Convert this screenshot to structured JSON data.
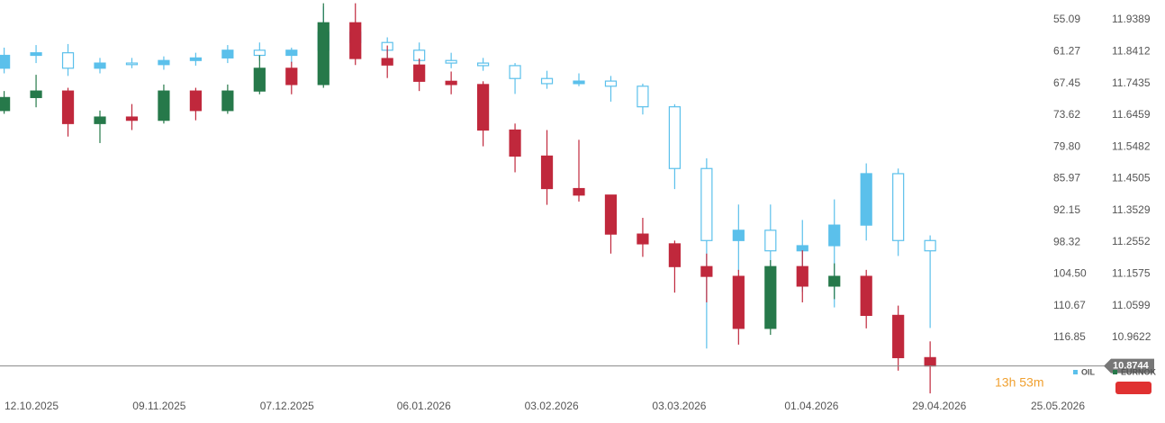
{
  "chart_data": {
    "type": "candlestick",
    "x": [
      "06.10.2025",
      "13.10.2025",
      "20.10.2025",
      "27.10.2025",
      "03.11.2025",
      "10.11.2025",
      "17.11.2025",
      "24.11.2025",
      "01.12.2025",
      "08.12.2025",
      "15.12.2025",
      "22.12.2025",
      "29.12.2025",
      "05.01.2026",
      "12.01.2026",
      "19.01.2026",
      "26.01.2026",
      "02.02.2026",
      "09.02.2026",
      "16.02.2026",
      "23.02.2026",
      "02.03.2026",
      "09.03.2026",
      "16.03.2026",
      "23.03.2026",
      "30.03.2026",
      "06.04.2026",
      "13.04.2026",
      "20.04.2026",
      "27.04.2026"
    ],
    "xticks": [
      "12.10.2025",
      "09.11.2025",
      "07.12.2025",
      "06.01.2026",
      "03.02.2026",
      "03.03.2026",
      "01.04.2026",
      "29.04.2026",
      "25.05.2026"
    ],
    "ylim": [
      128.22,
      51.24
    ],
    "yticks": [
      55.09,
      61.27,
      67.45,
      73.62,
      {
        "value": 79.8,
        "label": "79.80"
      },
      85.97,
      92.15,
      98.32,
      {
        "value": 104.5,
        "label": "104.50"
      },
      110.67,
      116.85
    ],
    "y2lim": [
      10.782,
      12.0
    ],
    "y2ticks": [
      11.9389,
      11.8412,
      11.7435,
      11.6459,
      11.5482,
      11.4505,
      11.3529,
      11.2552,
      11.1575,
      11.0599,
      10.9622
    ],
    "countdown": "13h 53m",
    "series": [
      {
        "name": "OIL",
        "color": "#5bc0eb",
        "open": [
          64.5,
          62.0,
          61.5,
          64.5,
          63.5,
          63.8,
          63.0,
          62.5,
          61.0,
          62.0,
          61.0,
          57.5,
          59.5,
          61.0,
          63.0,
          63.5,
          64.0,
          66.5,
          67.5,
          67.0,
          68.0,
          72.0,
          84.0,
          98.0,
          96.0,
          100.0,
          99.0,
          95.0,
          85.0,
          98.0
        ],
        "high": [
          65.5,
          63.5,
          66.0,
          65.5,
          64.5,
          64.8,
          64.0,
          63.5,
          63.0,
          63.5,
          62.0,
          60.0,
          62.5,
          64.0,
          64.5,
          65.0,
          69.5,
          68.5,
          68.0,
          71.0,
          73.5,
          88.0,
          119.0,
          104.0,
          110.0,
          108.0,
          111.0,
          98.0,
          101.0,
          115.0
        ],
        "low": [
          60.5,
          60.0,
          59.8,
          62.5,
          62.5,
          62.2,
          61.5,
          60.0,
          59.5,
          60.5,
          52.5,
          55.5,
          58.5,
          59.5,
          61.5,
          62.5,
          63.5,
          65.0,
          65.5,
          66.0,
          67.5,
          71.5,
          82.0,
          91.0,
          91.0,
          94.0,
          90.0,
          83.0,
          84.0,
          97.0
        ],
        "close": [
          62.0,
          61.5,
          64.5,
          63.5,
          63.8,
          63.0,
          62.5,
          61.0,
          62.0,
          61.0,
          57.5,
          59.5,
          61.0,
          63.0,
          63.5,
          64.0,
          66.5,
          67.5,
          67.0,
          68.0,
          72.0,
          84.0,
          98.0,
          96.0,
          100.0,
          99.0,
          95.0,
          85.0,
          98.0,
          100.0
        ]
      },
      {
        "name": "EURNOK",
        "axis": "y2",
        "up_color": "#26794a",
        "down_color": "#c0283c",
        "open": [
          11.66,
          11.7,
          11.72,
          11.62,
          11.64,
          11.63,
          11.72,
          11.66,
          11.72,
          11.79,
          11.74,
          11.93,
          11.82,
          11.8,
          11.75,
          11.74,
          11.6,
          11.52,
          11.42,
          11.4,
          11.28,
          11.25,
          11.18,
          11.15,
          10.99,
          11.18,
          11.12,
          11.15,
          11.03,
          10.9
        ],
        "high": [
          11.72,
          11.77,
          11.73,
          11.66,
          11.68,
          11.74,
          11.73,
          11.74,
          11.83,
          11.81,
          11.99,
          11.99,
          11.86,
          11.82,
          11.78,
          11.75,
          11.62,
          11.6,
          11.57,
          11.4,
          11.33,
          11.26,
          11.22,
          11.17,
          11.2,
          11.23,
          11.19,
          11.17,
          11.06,
          10.95
        ],
        "low": [
          11.65,
          11.67,
          11.58,
          11.56,
          11.6,
          11.62,
          11.63,
          11.65,
          11.71,
          11.71,
          11.73,
          11.8,
          11.76,
          11.72,
          11.71,
          11.55,
          11.47,
          11.37,
          11.38,
          11.22,
          11.21,
          11.1,
          11.07,
          10.94,
          10.97,
          11.07,
          11.08,
          10.99,
          10.86,
          10.79
        ],
        "close": [
          11.7,
          11.72,
          11.62,
          11.64,
          11.63,
          11.72,
          11.66,
          11.72,
          11.79,
          11.74,
          11.93,
          11.82,
          11.8,
          11.75,
          11.74,
          11.6,
          11.52,
          11.42,
          11.4,
          11.28,
          11.25,
          11.18,
          11.15,
          10.99,
          11.18,
          11.12,
          11.15,
          11.03,
          10.9,
          10.8744
        ]
      }
    ]
  }
}
